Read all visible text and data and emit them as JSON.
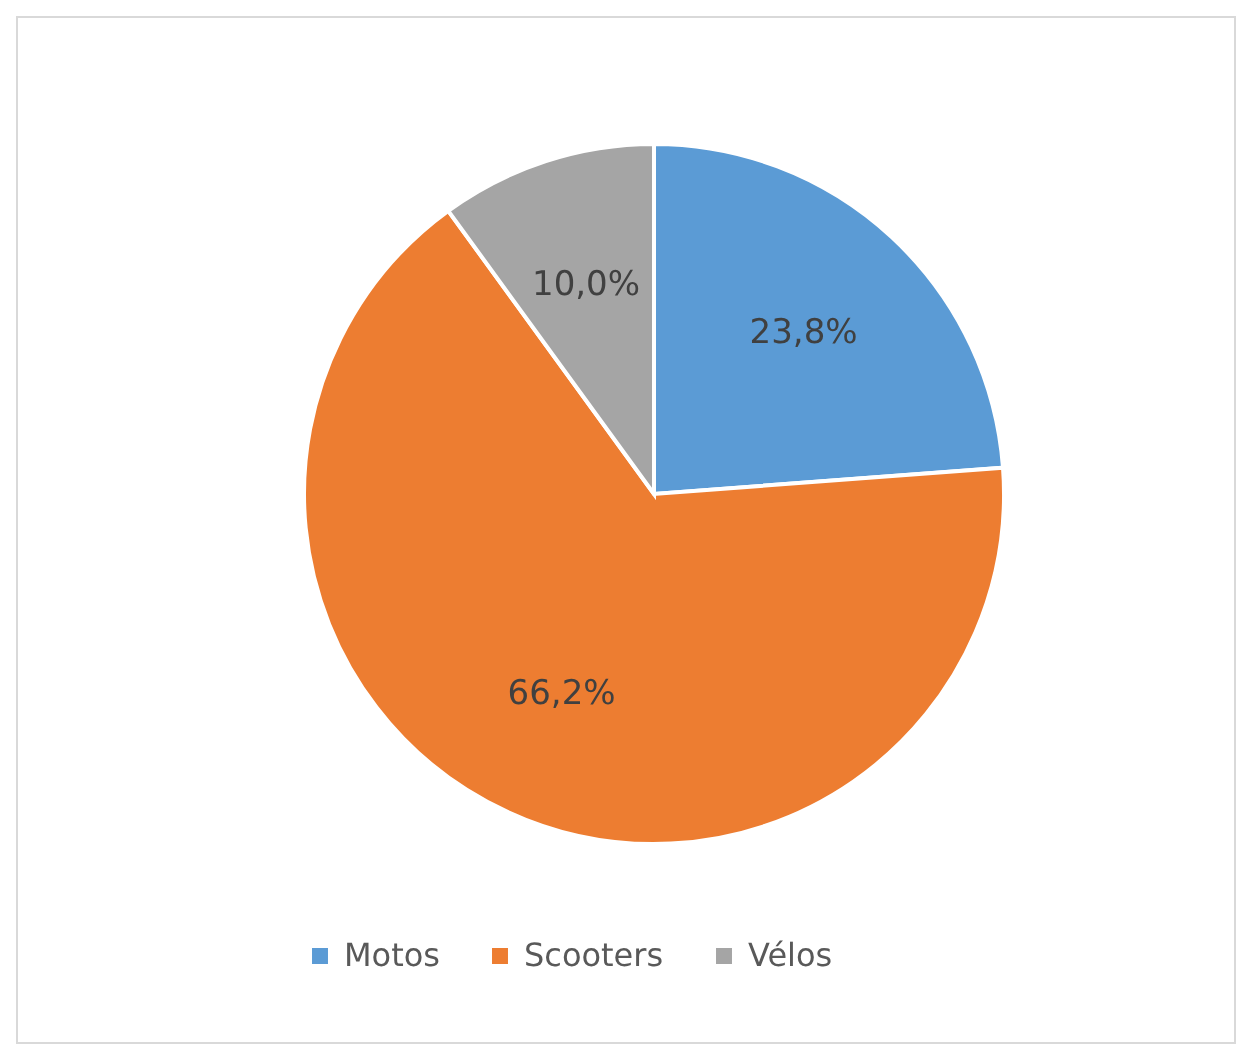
{
  "chart_data": {
    "type": "pie",
    "categories": [
      "Motos",
      "Scooters",
      "Vélos"
    ],
    "values": [
      23.8,
      66.2,
      10.0
    ],
    "colors": [
      "#5b9bd5",
      "#ed7d31",
      "#a5a5a5"
    ],
    "value_labels": [
      "23,8%",
      "66,2%",
      "10,0%"
    ],
    "legend": "bottom"
  }
}
